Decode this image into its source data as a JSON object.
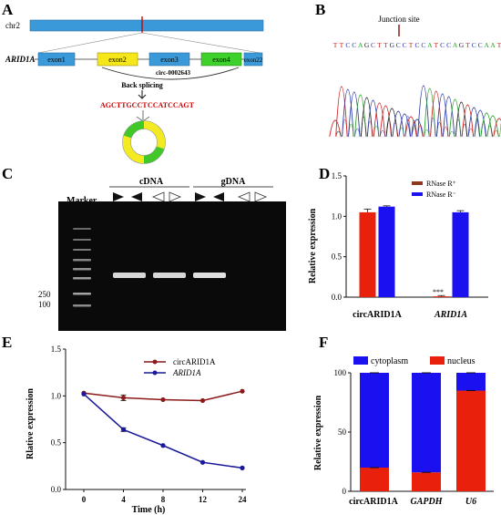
{
  "panels": {
    "A": {
      "letter": "A",
      "chr_label": "chr2",
      "gene_label": "ARID1A",
      "exons": [
        "exon1",
        "exon2",
        "exon3",
        "exon4",
        "exon22"
      ],
      "circ_name": "circ-0002643",
      "back_splicing": "Back splicing",
      "junction_seq_left": "AGCTTGCCT",
      "junction_seq_right": "CCATCCAGT",
      "colors": {
        "chr": "#3a9ad9",
        "exon_blue": "#3a9ad9",
        "exon_yellow": "#f5e71a",
        "exon_green": "#3fd12b",
        "ring_green": "#3fc828",
        "ring_yellow": "#f3ea22"
      }
    },
    "B": {
      "letter": "B",
      "junction_label": "Junction site",
      "sequence": "TTCCAGCTTGCCTCCATCCAGTCCAAT"
    },
    "C": {
      "letter": "C",
      "marker_label": "Marker",
      "cdna_label": "cDNA",
      "gdna_label": "gDNA",
      "size_labels": [
        "250",
        "100"
      ]
    },
    "D": {
      "letter": "D",
      "ylabel": "Relative expression",
      "legend": [
        "RNase R⁺",
        "RNase R⁻"
      ],
      "significance": "***",
      "chart_data": {
        "type": "bar",
        "categories": [
          "circARID1A",
          "ARID1A"
        ],
        "series": [
          {
            "name": "RNase R⁺",
            "values": [
              1.05,
              0.01
            ],
            "errors": [
              0.04,
              0.01
            ],
            "color": "#e8200c"
          },
          {
            "name": "RNase R⁻",
            "values": [
              1.12,
              1.05
            ],
            "errors": [
              0.01,
              0.02
            ],
            "color": "#1a10f0"
          }
        ],
        "ylim": [
          0.0,
          1.5
        ],
        "yticks": [
          "0.0",
          "0.5",
          "1.0",
          "1.5"
        ],
        "ylabel": "Relative expression"
      }
    },
    "E": {
      "letter": "E",
      "chart_data": {
        "type": "line",
        "x": [
          0,
          4,
          8,
          12,
          24
        ],
        "xticks": [
          "0",
          "4",
          "8",
          "12",
          "24"
        ],
        "series": [
          {
            "name": "circARID1A",
            "values": [
              1.03,
              0.98,
              0.96,
              0.95,
              1.05
            ],
            "errors": [
              0.01,
              0.03,
              0.01,
              0.01,
              0.01
            ],
            "color": "#8b1a1a"
          },
          {
            "name": "ARID1A",
            "values": [
              1.02,
              0.64,
              0.47,
              0.29,
              0.23
            ],
            "errors": [
              0.01,
              0.02,
              0.01,
              0.01,
              0.01
            ],
            "color": "#1a1a9a"
          }
        ],
        "ylim": [
          0.0,
          1.5
        ],
        "yticks": [
          "0.0",
          "0.5",
          "1.0",
          "1.5"
        ],
        "xlabel": "Time (h)",
        "ylabel": "Rlative expression"
      }
    },
    "F": {
      "letter": "F",
      "chart_data": {
        "type": "bar",
        "stacked": true,
        "categories": [
          "circARID1A",
          "GAPDH",
          "U6"
        ],
        "series": [
          {
            "name": "nucleus",
            "values": [
              20,
              16,
              85
            ],
            "color": "#e8200c"
          },
          {
            "name": "cytoplasm",
            "values": [
              80,
              84,
              15
            ],
            "color": "#1a10f0"
          }
        ],
        "ylim": [
          0,
          100
        ],
        "yticks": [
          "0",
          "50",
          "100"
        ],
        "ylabel": "Relative expression"
      },
      "legend": [
        "cytoplasm",
        "nucleus"
      ]
    }
  }
}
